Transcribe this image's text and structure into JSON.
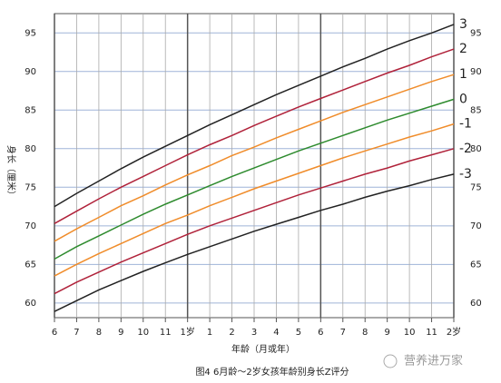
{
  "chart_data": {
    "type": "line",
    "title": "图4  6月龄～2岁女孩年龄别身长Z评分",
    "x_label": "年龄（月或年）",
    "y_label": "身长（厘米）",
    "watermark": "营养进万家",
    "x": [
      6,
      7,
      8,
      9,
      10,
      11,
      12,
      13,
      14,
      15,
      16,
      17,
      18,
      19,
      20,
      21,
      22,
      23,
      24
    ],
    "xlim": [
      6,
      24
    ],
    "xticks": [
      6,
      7,
      8,
      9,
      10,
      11,
      {
        "value": 12,
        "label": "1岁"
      },
      {
        "value": 13,
        "label": "1"
      },
      {
        "value": 14,
        "label": "2"
      },
      {
        "value": 15,
        "label": "3"
      },
      {
        "value": 16,
        "label": "4"
      },
      {
        "value": 17,
        "label": "5"
      },
      {
        "value": 18,
        "label": "6"
      },
      {
        "value": 19,
        "label": "7"
      },
      {
        "value": 20,
        "label": "8"
      },
      {
        "value": 21,
        "label": "9"
      },
      {
        "value": 22,
        "label": "10"
      },
      {
        "value": 23,
        "label": "11"
      },
      {
        "value": 24,
        "label": "2岁"
      }
    ],
    "ylim": [
      58.1,
      97.5
    ],
    "yticks": [
      60,
      65,
      70,
      75,
      80,
      85,
      90,
      95
    ],
    "grid": true,
    "series": [
      {
        "name": "3",
        "color": "#222222",
        "values": [
          72.5,
          74.2,
          75.8,
          77.4,
          78.9,
          80.3,
          81.7,
          83.1,
          84.4,
          85.7,
          87.0,
          88.2,
          89.4,
          90.6,
          91.7,
          92.9,
          94.0,
          95.0,
          96.1
        ]
      },
      {
        "name": "2",
        "color": "#b0223a",
        "values": [
          70.3,
          71.9,
          73.5,
          75.0,
          76.4,
          77.8,
          79.2,
          80.5,
          81.7,
          83.0,
          84.2,
          85.4,
          86.5,
          87.6,
          88.7,
          89.8,
          90.8,
          91.9,
          92.9
        ]
      },
      {
        "name": "1",
        "color": "#f08c2a",
        "values": [
          68.0,
          69.6,
          71.1,
          72.6,
          73.9,
          75.3,
          76.6,
          77.8,
          79.1,
          80.2,
          81.4,
          82.5,
          83.6,
          84.7,
          85.7,
          86.7,
          87.7,
          88.7,
          89.6
        ]
      },
      {
        "name": "0",
        "color": "#2e8b2e",
        "values": [
          65.7,
          67.3,
          68.7,
          70.1,
          71.5,
          72.8,
          74.0,
          75.2,
          76.4,
          77.5,
          78.6,
          79.7,
          80.7,
          81.7,
          82.7,
          83.7,
          84.6,
          85.5,
          86.4
        ]
      },
      {
        "name": "-1",
        "color": "#f08c2a",
        "values": [
          63.5,
          65.0,
          66.4,
          67.7,
          69.0,
          70.3,
          71.4,
          72.6,
          73.7,
          74.8,
          75.8,
          76.8,
          77.8,
          78.8,
          79.7,
          80.6,
          81.5,
          82.3,
          83.2
        ]
      },
      {
        "name": "-2",
        "color": "#b0223a",
        "values": [
          61.2,
          62.7,
          64.0,
          65.3,
          66.5,
          67.7,
          68.9,
          70.0,
          71.0,
          72.0,
          73.0,
          74.0,
          74.9,
          75.8,
          76.7,
          77.5,
          78.4,
          79.2,
          80.0
        ]
      },
      {
        "name": "-3",
        "color": "#222222",
        "values": [
          58.9,
          60.3,
          61.7,
          62.9,
          64.1,
          65.2,
          66.3,
          67.3,
          68.3,
          69.3,
          70.2,
          71.1,
          72.0,
          72.8,
          73.7,
          74.5,
          75.2,
          76.0,
          76.7
        ]
      }
    ]
  }
}
